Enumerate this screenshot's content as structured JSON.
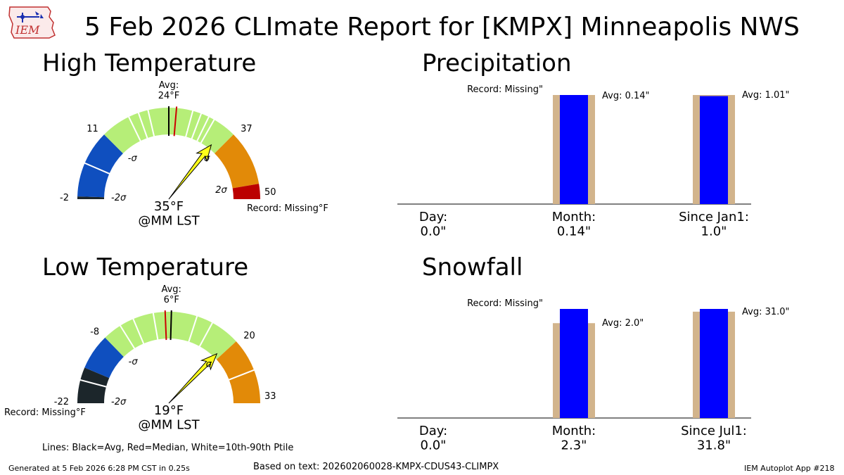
{
  "header": {
    "title": "5 Feb 2026 CLImate Report for [KMPX] Minneapolis NWS",
    "logo_text": "IEM"
  },
  "colors": {
    "cold_extreme": "#1c262b",
    "cold": "#0f4fbf",
    "normal": "#b6ee78",
    "warm": "#e28a08",
    "hot_extreme": "#bb0000",
    "needle": "#ffff1a",
    "avg_line": "#000000",
    "median_line": "#cc0000",
    "ptile_line": "#ffffff",
    "bar_obs": "#0000ff",
    "bar_avg": "#d2b48c"
  },
  "high_temp": {
    "heading": "High Temperature",
    "min": -2,
    "max": 50,
    "observed": 35,
    "avg": 24,
    "median": 25.4,
    "zones": [
      {
        "from": -2,
        "to": -1.5,
        "color": "cold_extreme"
      },
      {
        "from": -1.5,
        "to": 11,
        "color": "cold"
      },
      {
        "from": 11,
        "to": 37,
        "color": "normal"
      },
      {
        "from": 37,
        "to": 47.2,
        "color": "warm"
      },
      {
        "from": 47.2,
        "to": 50,
        "color": "hot_extreme"
      }
    ],
    "white_lines": [
      4.7,
      16.5,
      18.4,
      20.2,
      28.4,
      30,
      31.5,
      32.6
    ],
    "labels": {
      "min": "-2",
      "low_sigma_val": "11",
      "high_sigma_val": "37",
      "max": "50",
      "neg2sigma": "-2σ",
      "neg1sigma": "-σ",
      "pos1sigma": "σ",
      "pos2sigma": "2σ",
      "avg": "Avg:\n24°F",
      "observed": "35°F\n@MM LST",
      "record": "Record: Missing°F"
    }
  },
  "low_temp": {
    "heading": "Low Temperature",
    "min": -22,
    "max": 33,
    "observed": 19,
    "avg": 6,
    "median": 4.8,
    "zones": [
      {
        "from": -22,
        "to": -15,
        "color": "cold_extreme"
      },
      {
        "from": -15,
        "to": -8,
        "color": "cold"
      },
      {
        "from": -8,
        "to": 20,
        "color": "normal"
      },
      {
        "from": 20,
        "to": 33,
        "color": "warm"
      }
    ],
    "white_lines": [
      -17.5,
      -4.3,
      -1.5,
      2.5,
      11,
      14.2,
      26.5
    ],
    "labels": {
      "min": "-22",
      "low_sigma_val": "-8",
      "high_sigma_val": "20",
      "max": "33",
      "neg2sigma": "-2σ",
      "neg1sigma": "-σ",
      "pos1sigma": "σ",
      "avg": "Avg:\n6°F",
      "observed": "19°F\n@MM LST",
      "record": "Record: Missing°F"
    }
  },
  "chart_data": [
    {
      "type": "bar",
      "title": "Precipitation",
      "categories": [
        "Day:\n0.0\"",
        "Month:\n0.14\"",
        "Since Jan1:\n1.0\""
      ],
      "series": [
        {
          "name": "Observed",
          "values": [
            0.0,
            0.14,
            1.0
          ]
        },
        {
          "name": "Avg",
          "values": [
            0.0,
            0.14,
            1.01
          ]
        }
      ],
      "annotations": [
        "Record: Missing\"",
        "Avg: 0.14\"",
        "Avg: 1.01\""
      ]
    },
    {
      "type": "bar",
      "title": "Snowfall",
      "categories": [
        "Day:\n0.0\"",
        "Month:\n2.3\"",
        "Since Jul1:\n31.8\""
      ],
      "series": [
        {
          "name": "Observed",
          "values": [
            0.0,
            2.3,
            31.8
          ]
        },
        {
          "name": "Avg",
          "values": [
            0.0,
            2.0,
            31.0
          ]
        }
      ],
      "annotations": [
        "Record: Missing\"",
        "Avg: 2.0\"",
        "Avg: 31.0\""
      ]
    }
  ],
  "legend_note": "Lines: Black=Avg, Red=Median, White=10th-90th Ptile",
  "footer": {
    "generated": "Generated at 5 Feb 2026 6:28 PM CST in 0.25s",
    "based_on": "Based on text: 202602060028-KMPX-CDUS43-CLIMPX",
    "app": "IEM Autoplot App #218"
  }
}
